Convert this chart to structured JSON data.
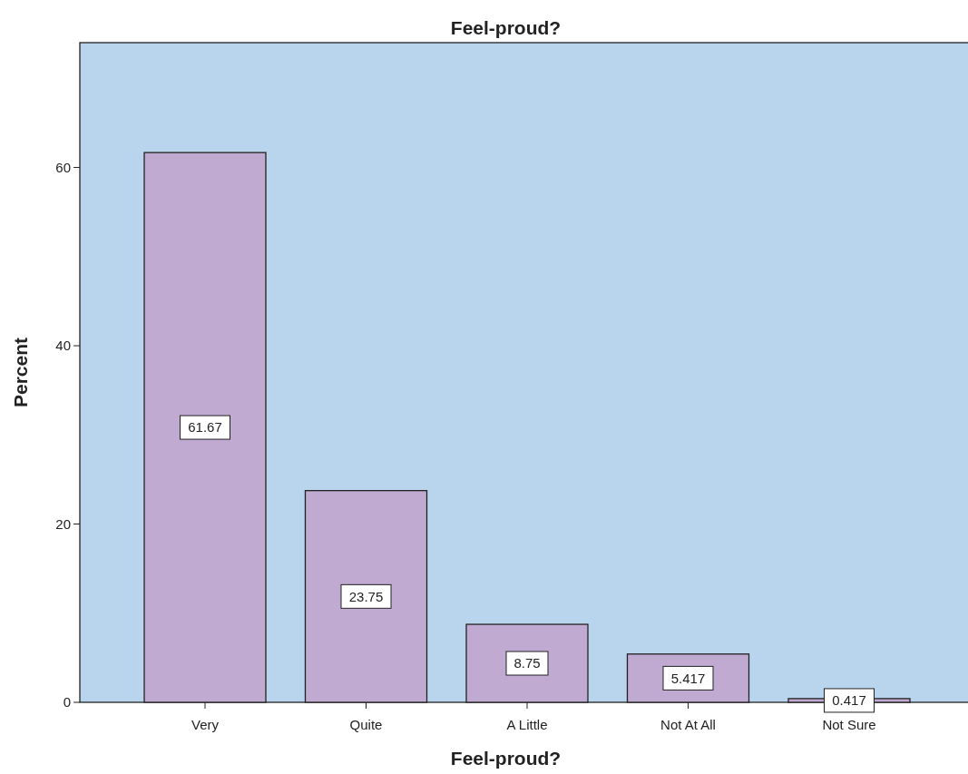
{
  "chart_data": {
    "type": "bar",
    "title": "Feel-proud?",
    "xlabel": "Feel-proud?",
    "ylabel": "Percent",
    "categories": [
      "Very",
      "Quite",
      "A Little",
      "Not At All",
      "Not Sure"
    ],
    "values": [
      61.67,
      23.75,
      8.75,
      5.417,
      0.417
    ],
    "color": "#c1aad1",
    "ylim": [
      0,
      74
    ],
    "yticks": [
      0,
      20,
      40,
      60
    ],
    "grid": false,
    "data_labels": true
  }
}
